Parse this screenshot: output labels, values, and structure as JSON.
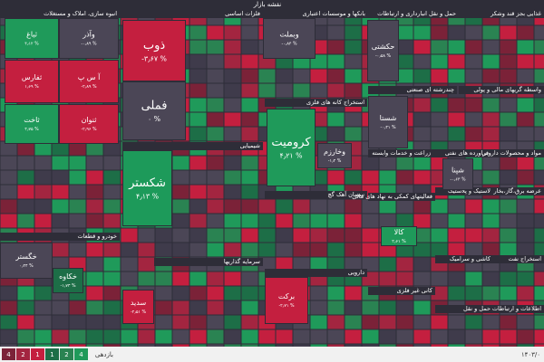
{
  "title": "نقشه بازار",
  "sectors": [
    "انبوه سازی، املاک و مستغلات",
    "فلزات اساسی",
    "بانکها و موسسات اعتباری",
    "حمل و نقل انبارداری و ارتباطات",
    "غذایی بجز قند وشکر",
    "استخراج کانه های فلزی",
    "چندرشته ای صنعتی",
    "واسطه گریهای مالی و پولی",
    "شیمیایی",
    "زراعت و خدمات وابسته",
    "فراورده های نفتی",
    "مواد و محصولات دارویی",
    "سیمان آهک گچ",
    "فعالیتهای کمکی به نهاد های مالی",
    "لاستیک و پلاستیک",
    "عرضه برق،گاز،بخار",
    "خودرو و قطعات",
    "سرمایه گذاریها",
    "دارویی",
    "کاشی و سرامیک",
    "استخراج نفت",
    "کانی غیر فلزی",
    "حمل و نقل",
    "اطلاعات و ارتباطات"
  ],
  "tiles": [
    {
      "name": "ثباغ",
      "change": "۴٫۱۲ %"
    },
    {
      "name": "وآذر",
      "change": "-۰٫۸۹ %"
    },
    {
      "name": "ثفارس",
      "change": "۱٫۶۹ %"
    },
    {
      "name": "آ س پ",
      "change": "-۲٫۸۹ %"
    },
    {
      "name": "ثاخت",
      "change": "۴٫۷۵ %"
    },
    {
      "name": "ثنوان",
      "change": "-۲٫۹۶ %"
    },
    {
      "name": "ذوب",
      "change": "-۳٫۶۷ %"
    },
    {
      "name": "فملی",
      "change": "۰ %"
    },
    {
      "name": "وبملت",
      "change": "-۰٫۸۴ %"
    },
    {
      "name": "کرومیت",
      "change": "۴٫۲۱ %"
    },
    {
      "name": "شکستر",
      "change": "۴٫۱۳ %"
    },
    {
      "name": "حکشتی",
      "change": "-۰٫۵۸ %"
    },
    {
      "name": "شستا",
      "change": "-۰٫۴۱ %"
    },
    {
      "name": "خکاوه",
      "change": "-۱٫۷۳ %"
    },
    {
      "name": "خگستر",
      "change": "۰٫۲۴ %"
    },
    {
      "name": "سدید",
      "change": "-۲٫۵۱ %"
    },
    {
      "name": "برکت",
      "change": "-۲٫۷۱ %"
    },
    {
      "name": "کالا",
      "change": "۲٫۶۱ %"
    },
    {
      "name": "شپنا",
      "change": "-۰٫۶۳ %"
    },
    {
      "name": "وخارزم",
      "change": "-۱٫۲ %"
    }
  ],
  "footer": {
    "legend_label": "بازدهی",
    "legend_steps": [
      "4",
      "2",
      "1",
      "1",
      "2",
      "4"
    ],
    "date": "۱۴۰۳/۰"
  }
}
